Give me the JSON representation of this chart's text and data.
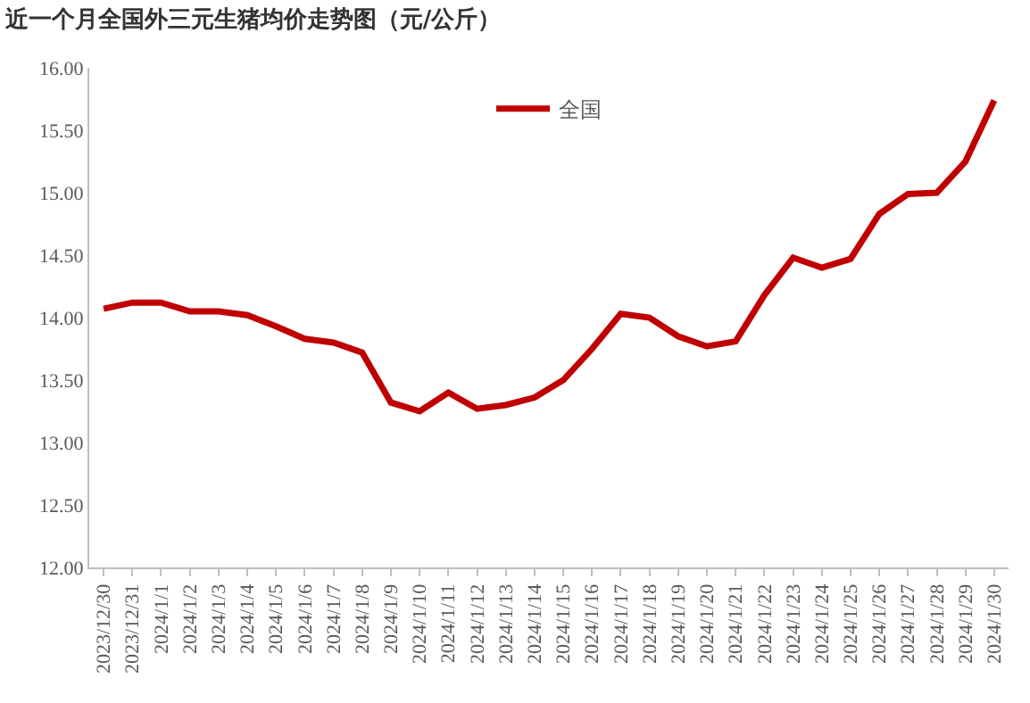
{
  "chart_data": {
    "type": "line",
    "title": "近一个月全国外三元生猪均价走势图（元/公斤）",
    "categories": [
      "2023/12/30",
      "2023/12/31",
      "2024/1/1",
      "2024/1/2",
      "2024/1/3",
      "2024/1/4",
      "2024/1/5",
      "2024/1/6",
      "2024/1/7",
      "2024/1/8",
      "2024/1/9",
      "2024/1/10",
      "2024/1/11",
      "2024/1/12",
      "2024/1/13",
      "2024/1/14",
      "2024/1/15",
      "2024/1/16",
      "2024/1/17",
      "2024/1/18",
      "2024/1/19",
      "2024/1/20",
      "2024/1/21",
      "2024/1/22",
      "2024/1/23",
      "2024/1/24",
      "2024/1/25",
      "2024/1/26",
      "2024/1/27",
      "2024/1/28",
      "2024/1/29",
      "2024/1/30"
    ],
    "series": [
      {
        "name": "全国",
        "color": "#c00000",
        "values": [
          14.07,
          14.12,
          14.12,
          14.05,
          14.05,
          14.02,
          13.93,
          13.83,
          13.8,
          13.72,
          13.32,
          13.25,
          13.4,
          13.27,
          13.3,
          13.36,
          13.5,
          13.75,
          14.03,
          14.0,
          13.85,
          13.77,
          13.81,
          14.18,
          14.48,
          14.4,
          14.47,
          14.83,
          14.99,
          15.0,
          15.25,
          15.74
        ]
      }
    ],
    "ylim": [
      12,
      16
    ],
    "yticks": [
      {
        "value": 12,
        "label": "12.00"
      },
      {
        "value": 12.5,
        "label": "12.50"
      },
      {
        "value": 13,
        "label": "13.00"
      },
      {
        "value": 13.5,
        "label": "13.50"
      },
      {
        "value": 14,
        "label": "14.00"
      },
      {
        "value": 14.5,
        "label": "14.50"
      },
      {
        "value": 15,
        "label": "15.00"
      },
      {
        "value": 15.5,
        "label": "15.50"
      },
      {
        "value": 16,
        "label": "16.00"
      }
    ],
    "grid": false,
    "legend": "top",
    "marker": "none",
    "line_style": "solid"
  }
}
